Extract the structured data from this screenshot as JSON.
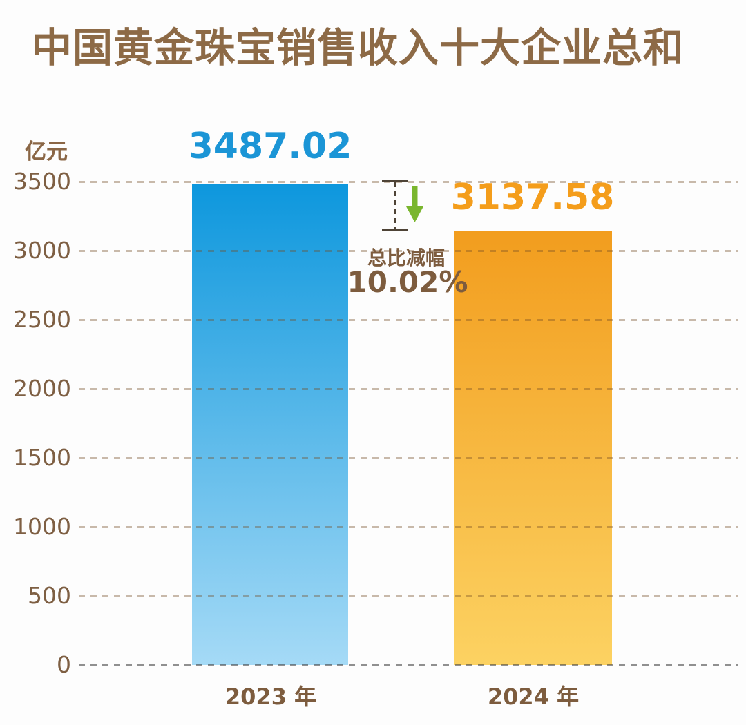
{
  "chart_data": {
    "type": "bar",
    "title": "中国黄金珠宝销售收入十大企业总和",
    "unit_label": "亿元",
    "categories": [
      "2023 年",
      "2024 年"
    ],
    "values": [
      3487.02,
      3137.58
    ],
    "value_labels": [
      "3487.02",
      "3137.58"
    ],
    "yticks": [
      3500,
      3000,
      2500,
      2000,
      1500,
      1000,
      500,
      0
    ],
    "ylim": [
      0,
      3500
    ],
    "grid": "horizontal-dashed",
    "legend": "none",
    "annotation": {
      "label": "总比减幅",
      "value": "10.02%",
      "direction": "down"
    },
    "colors": {
      "bar_2023_top": "#0d97dd",
      "bar_2023_bottom": "#a5daf6",
      "bar_2024_top": "#f29d1e",
      "bar_2024_bottom": "#fcd262",
      "value_2023_text": "#1b95d6",
      "value_2024_text": "#f49d1b",
      "axis_text": "#7e5f43",
      "title_text": "#8d6a46",
      "gridline": "#d4b79c",
      "baseline": "#949494",
      "arrow_green": "#7ab62e",
      "ibeam": "#4e4336"
    }
  }
}
